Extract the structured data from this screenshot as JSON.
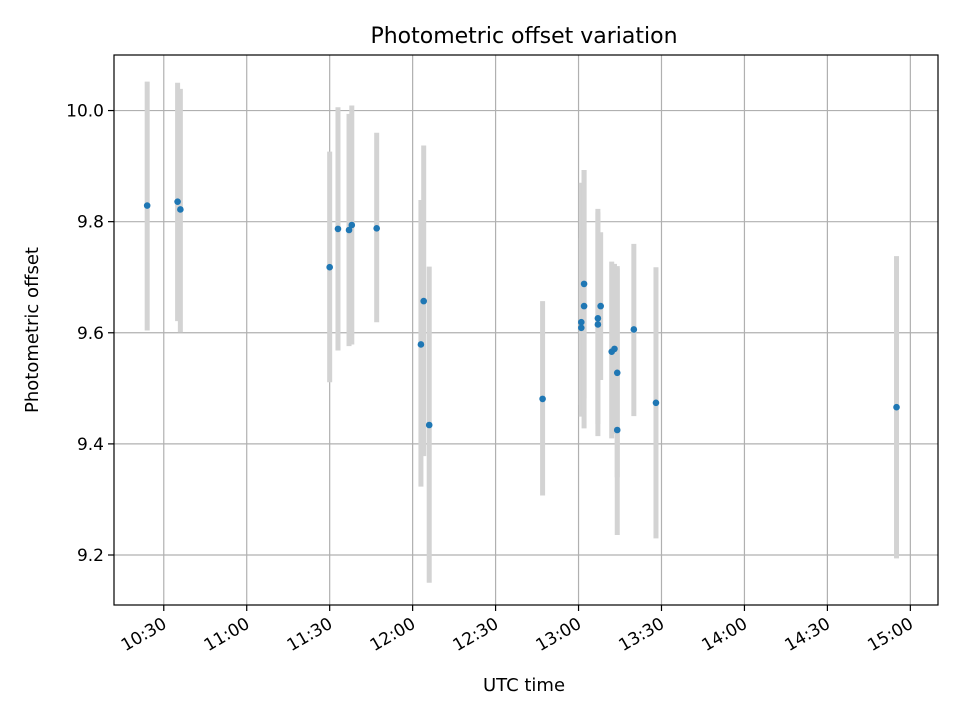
{
  "chart_data": {
    "type": "scatter",
    "title": "Photometric offset variation",
    "xlabel": "UTC time",
    "ylabel": "Photometric offset",
    "xlim": [
      "10:12",
      "15:10"
    ],
    "ylim": [
      9.11,
      10.1
    ],
    "x_ticks": [
      "10:30",
      "11:00",
      "11:30",
      "12:00",
      "12:30",
      "13:00",
      "13:30",
      "14:00",
      "14:30",
      "15:00"
    ],
    "y_ticks": [
      9.2,
      9.4,
      9.6,
      9.8,
      10.0
    ],
    "y_tick_labels": [
      "9.2",
      "9.4",
      "9.6",
      "9.8",
      "10.0"
    ],
    "grid": true,
    "point_color": "#1f77b4",
    "errorbar_color": "#d3d3d3",
    "points": [
      {
        "time": "10:24",
        "y": 9.829,
        "ylow": 9.604,
        "yhigh": 10.052
      },
      {
        "time": "10:35",
        "y": 9.836,
        "ylow": 9.621,
        "yhigh": 10.05
      },
      {
        "time": "10:36",
        "y": 9.822,
        "ylow": 9.601,
        "yhigh": 10.039
      },
      {
        "time": "11:30",
        "y": 9.718,
        "ylow": 9.511,
        "yhigh": 9.926
      },
      {
        "time": "11:33",
        "y": 9.787,
        "ylow": 9.568,
        "yhigh": 10.006
      },
      {
        "time": "11:37",
        "y": 9.785,
        "ylow": 9.576,
        "yhigh": 9.994
      },
      {
        "time": "11:38",
        "y": 9.794,
        "ylow": 9.579,
        "yhigh": 10.009
      },
      {
        "time": "11:47",
        "y": 9.788,
        "ylow": 9.619,
        "yhigh": 9.96
      },
      {
        "time": "12:03",
        "y": 9.579,
        "ylow": 9.323,
        "yhigh": 9.839
      },
      {
        "time": "12:04",
        "y": 9.657,
        "ylow": 9.378,
        "yhigh": 9.937
      },
      {
        "time": "12:06",
        "y": 9.434,
        "ylow": 9.15,
        "yhigh": 9.719
      },
      {
        "time": "12:47",
        "y": 9.481,
        "ylow": 9.307,
        "yhigh": 9.657
      },
      {
        "time": "13:01",
        "y": 9.619,
        "ylow": 9.47,
        "yhigh": 9.77
      },
      {
        "time": "13:01",
        "y": 9.609,
        "ylow": 9.449,
        "yhigh": 9.87
      },
      {
        "time": "13:02",
        "y": 9.648,
        "ylow": 9.428,
        "yhigh": 9.893
      },
      {
        "time": "13:02",
        "y": 9.688,
        "ylow": 9.482,
        "yhigh": 9.893
      },
      {
        "time": "13:07",
        "y": 9.626,
        "ylow": 9.436,
        "yhigh": 9.823
      },
      {
        "time": "13:07",
        "y": 9.615,
        "ylow": 9.414,
        "yhigh": 9.817
      },
      {
        "time": "13:08",
        "y": 9.648,
        "ylow": 9.515,
        "yhigh": 9.781
      },
      {
        "time": "13:12",
        "y": 9.566,
        "ylow": 9.41,
        "yhigh": 9.728
      },
      {
        "time": "13:13",
        "y": 9.571,
        "ylow": 9.418,
        "yhigh": 9.724
      },
      {
        "time": "13:14",
        "y": 9.425,
        "ylow": 9.236,
        "yhigh": 9.72
      },
      {
        "time": "13:14",
        "y": 9.528,
        "ylow": 9.34,
        "yhigh": 9.716
      },
      {
        "time": "13:20",
        "y": 9.606,
        "ylow": 9.45,
        "yhigh": 9.76
      },
      {
        "time": "13:28",
        "y": 9.474,
        "ylow": 9.23,
        "yhigh": 9.718
      },
      {
        "time": "14:55",
        "y": 9.466,
        "ylow": 9.194,
        "yhigh": 9.738
      }
    ]
  }
}
